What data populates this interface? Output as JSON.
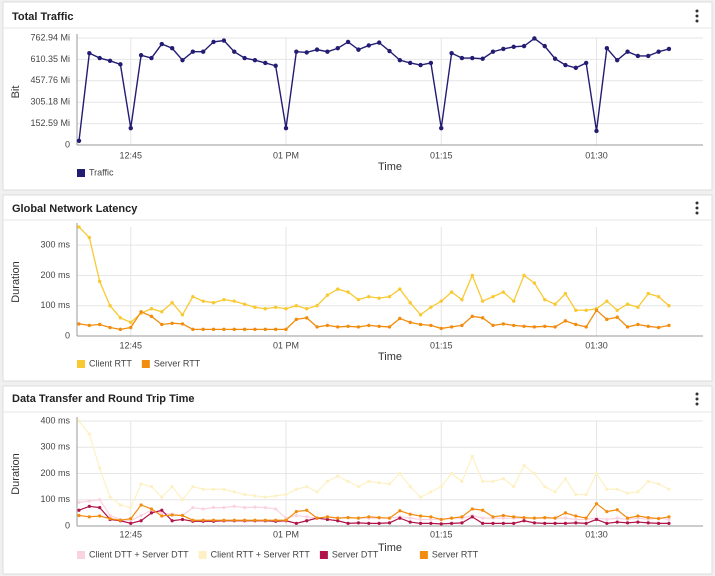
{
  "chart_data": [
    {
      "type": "line",
      "title": "Total Traffic",
      "x_label": "Time",
      "y_label": "Bit",
      "grid": true,
      "legend": "bottom",
      "categories": [
        null,
        null,
        null,
        null,
        null,
        "12:45",
        null,
        null,
        null,
        null,
        null,
        null,
        null,
        null,
        null,
        null,
        null,
        null,
        null,
        null,
        "01 PM",
        null,
        null,
        null,
        null,
        null,
        null,
        null,
        null,
        null,
        null,
        null,
        null,
        null,
        null,
        "01:15",
        null,
        null,
        null,
        null,
        null,
        null,
        null,
        null,
        null,
        null,
        null,
        null,
        null,
        null,
        "01:30",
        null,
        null,
        null,
        null,
        null,
        null,
        null
      ],
      "ylim": [
        0,
        762.94
      ],
      "yticks": [
        0,
        {
          "value": 152.59,
          "label": "152.59 Mi"
        },
        {
          "value": 305.18,
          "label": "305.18 Mi"
        },
        {
          "value": 457.76,
          "label": "457.76 Mi"
        },
        {
          "value": 610.35,
          "label": "610.35 Mi"
        },
        {
          "value": 762.94,
          "label": "762.94 Mi"
        }
      ],
      "series": [
        {
          "name": "Traffic",
          "color": "#231c73",
          "values": [
            30,
            655,
            620,
            600,
            575,
            120,
            640,
            620,
            720,
            690,
            605,
            665,
            665,
            735,
            745,
            665,
            620,
            605,
            585,
            565,
            120,
            665,
            660,
            680,
            665,
            690,
            735,
            680,
            710,
            730,
            670,
            605,
            585,
            570,
            585,
            120,
            655,
            620,
            620,
            615,
            665,
            685,
            700,
            705,
            760,
            705,
            615,
            570,
            550,
            585,
            100,
            690,
            605,
            665,
            635,
            635,
            665,
            685
          ]
        }
      ]
    },
    {
      "type": "line",
      "title": "Global Network Latency",
      "x_label": "Time",
      "y_label": "Duration",
      "grid": true,
      "legend": "bottom",
      "categories": [
        null,
        null,
        null,
        null,
        null,
        "12:45",
        null,
        null,
        null,
        null,
        null,
        null,
        null,
        null,
        null,
        null,
        null,
        null,
        null,
        null,
        "01 PM",
        null,
        null,
        null,
        null,
        null,
        null,
        null,
        null,
        null,
        null,
        null,
        null,
        null,
        null,
        "01:15",
        null,
        null,
        null,
        null,
        null,
        null,
        null,
        null,
        null,
        null,
        null,
        null,
        null,
        null,
        "01:30",
        null,
        null,
        null,
        null,
        null,
        null,
        null
      ],
      "ylim": [
        0,
        360
      ],
      "yticks": [
        0,
        {
          "value": 100,
          "label": "100 ms"
        },
        {
          "value": 200,
          "label": "200 ms"
        },
        {
          "value": 300,
          "label": "300 ms"
        }
      ],
      "series": [
        {
          "name": "Client RTT",
          "color": "#f9c933",
          "values": [
            360,
            325,
            180,
            100,
            60,
            45,
            75,
            90,
            80,
            110,
            70,
            130,
            115,
            110,
            120,
            115,
            105,
            95,
            90,
            95,
            90,
            100,
            90,
            100,
            135,
            155,
            145,
            120,
            130,
            125,
            130,
            155,
            110,
            70,
            95,
            115,
            145,
            120,
            200,
            115,
            130,
            145,
            115,
            200,
            175,
            120,
            105,
            140,
            85,
            85,
            90,
            115,
            85,
            105,
            95,
            140,
            130,
            100
          ]
        },
        {
          "name": "Server RTT",
          "color": "#f28c0f",
          "values": [
            40,
            35,
            38,
            28,
            22,
            28,
            80,
            65,
            38,
            42,
            40,
            22,
            22,
            22,
            22,
            22,
            22,
            22,
            22,
            22,
            22,
            55,
            60,
            30,
            35,
            30,
            32,
            30,
            35,
            32,
            30,
            58,
            45,
            38,
            35,
            25,
            30,
            35,
            65,
            60,
            35,
            40,
            35,
            32,
            30,
            32,
            30,
            50,
            38,
            30,
            85,
            55,
            62,
            30,
            38,
            32,
            28,
            35
          ]
        }
      ]
    },
    {
      "type": "line",
      "title": "Data Transfer and Round Trip Time",
      "x_label": "Time",
      "y_label": "Duration",
      "grid": true,
      "legend": "bottom",
      "categories": [
        null,
        null,
        null,
        null,
        null,
        "12:45",
        null,
        null,
        null,
        null,
        null,
        null,
        null,
        null,
        null,
        null,
        null,
        null,
        null,
        null,
        "01 PM",
        null,
        null,
        null,
        null,
        null,
        null,
        null,
        null,
        null,
        null,
        null,
        null,
        null,
        null,
        "01:15",
        null,
        null,
        null,
        null,
        null,
        null,
        null,
        null,
        null,
        null,
        null,
        null,
        null,
        null,
        "01:30",
        null,
        null,
        null,
        null,
        null,
        null,
        null
      ],
      "ylim": [
        0,
        400
      ],
      "yticks": [
        0,
        {
          "value": 100,
          "label": "100 ms"
        },
        {
          "value": 200,
          "label": "200 ms"
        },
        {
          "value": 300,
          "label": "300 ms"
        },
        {
          "value": 400,
          "label": "400 ms"
        }
      ],
      "series": [
        {
          "name": "Client DTT + Server DTT",
          "color": "#f9d3e2",
          "values": [
            90,
            95,
            100,
            40,
            25,
            20,
            40,
            60,
            50,
            45,
            40,
            70,
            65,
            70,
            70,
            75,
            70,
            72,
            70,
            65,
            30,
            40,
            35,
            30,
            35,
            30,
            32,
            30,
            30,
            30,
            30,
            35,
            30,
            25,
            25,
            25,
            30,
            30,
            40,
            30,
            30,
            30,
            30,
            30,
            30,
            30,
            30,
            30,
            25,
            25,
            30,
            25,
            30,
            25,
            30,
            25,
            30,
            25
          ]
        },
        {
          "name": "Client RTT + Server RTT",
          "color": "#fdf1c4",
          "values": [
            400,
            350,
            220,
            110,
            80,
            70,
            160,
            150,
            110,
            150,
            100,
            150,
            140,
            140,
            140,
            130,
            120,
            115,
            110,
            115,
            120,
            140,
            150,
            130,
            170,
            190,
            170,
            150,
            170,
            165,
            160,
            200,
            150,
            110,
            130,
            150,
            200,
            170,
            265,
            170,
            170,
            180,
            150,
            230,
            200,
            150,
            130,
            180,
            120,
            120,
            200,
            140,
            140,
            125,
            130,
            170,
            160,
            140
          ]
        },
        {
          "name": "Server DTT",
          "color": "#b0124a",
          "values": [
            60,
            75,
            70,
            25,
            20,
            10,
            20,
            50,
            60,
            20,
            25,
            18,
            18,
            18,
            20,
            20,
            20,
            20,
            20,
            18,
            20,
            10,
            20,
            30,
            25,
            20,
            10,
            12,
            10,
            10,
            12,
            30,
            15,
            10,
            10,
            8,
            10,
            12,
            35,
            10,
            10,
            10,
            10,
            20,
            12,
            10,
            10,
            10,
            12,
            10,
            25,
            10,
            15,
            12,
            15,
            12,
            10,
            10
          ]
        },
        {
          "name": "Server RTT",
          "color": "#f28c0f",
          "values": [
            40,
            35,
            38,
            28,
            22,
            28,
            80,
            65,
            38,
            42,
            40,
            22,
            22,
            22,
            22,
            22,
            22,
            22,
            22,
            22,
            22,
            55,
            60,
            30,
            35,
            30,
            32,
            30,
            35,
            32,
            30,
            58,
            45,
            38,
            35,
            25,
            30,
            35,
            65,
            60,
            35,
            40,
            35,
            32,
            30,
            32,
            30,
            50,
            38,
            30,
            85,
            55,
            62,
            30,
            38,
            32,
            28,
            35
          ]
        }
      ]
    }
  ]
}
